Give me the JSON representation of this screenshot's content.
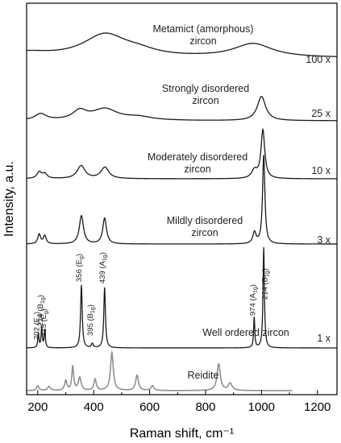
{
  "chart_data": {
    "type": "line",
    "title": "",
    "xlabel": "Raman shift, cm⁻¹",
    "ylabel": "Intensity, a.u.",
    "xlim": [
      160,
      1270
    ],
    "x_ticks": [
      200,
      400,
      600,
      800,
      1000,
      1200
    ],
    "y_ticks_shown": false,
    "grid": false,
    "legend": "none (each spectrum labeled inline)",
    "series": [
      {
        "name": "Metamict (amorphous) zircon",
        "label_lines": [
          "Metamict (amorphous)",
          "zircon"
        ],
        "scale": "100 x",
        "color": "#1a1a1a",
        "x_end": 1270,
        "peaks": [
          {
            "x": 160,
            "h": 6,
            "w": 100
          },
          {
            "x": 440,
            "h": 28,
            "w": 95
          },
          {
            "x": 560,
            "h": 6,
            "w": 80
          },
          {
            "x": 970,
            "h": 17,
            "w": 85
          }
        ]
      },
      {
        "name": "Strongly disordered zircon",
        "label_lines": [
          "Strongly disordered",
          "zircon"
        ],
        "scale": "25 x",
        "color": "#1a1a1a",
        "x_end": 1270,
        "peaks": [
          {
            "x": 210,
            "h": 8,
            "w": 25
          },
          {
            "x": 350,
            "h": 11,
            "w": 30
          },
          {
            "x": 440,
            "h": 14,
            "w": 55
          },
          {
            "x": 560,
            "h": 4,
            "w": 60
          },
          {
            "x": 1000,
            "h": 30,
            "w": 18
          }
        ]
      },
      {
        "name": "Moderately disordered zircon",
        "label_lines": [
          "Moderately disordered",
          "zircon"
        ],
        "scale": "10 x",
        "color": "#1a1a1a",
        "x_end": 1270,
        "peaks": [
          {
            "x": 205,
            "h": 8,
            "w": 10
          },
          {
            "x": 225,
            "h": 6,
            "w": 10
          },
          {
            "x": 355,
            "h": 16,
            "w": 17
          },
          {
            "x": 440,
            "h": 14,
            "w": 17
          },
          {
            "x": 975,
            "h": 10,
            "w": 12
          },
          {
            "x": 1005,
            "h": 60,
            "w": 8
          }
        ]
      },
      {
        "name": "Mildly disordered zircon",
        "label_lines": [
          "Mildly disordered",
          "zircon"
        ],
        "scale": "3 x",
        "color": "#1a1a1a",
        "x_end": 1270,
        "peaks": [
          {
            "x": 205,
            "h": 12,
            "w": 6
          },
          {
            "x": 225,
            "h": 10,
            "w": 6
          },
          {
            "x": 356,
            "h": 35,
            "w": 9
          },
          {
            "x": 439,
            "h": 32,
            "w": 8
          },
          {
            "x": 975,
            "h": 14,
            "w": 7
          },
          {
            "x": 1008,
            "h": 110,
            "w": 5
          }
        ]
      },
      {
        "name": "Well ordered zircon",
        "label_lines": [
          "Well ordered zircon"
        ],
        "scale": "1 x",
        "color": "#1a1a1a",
        "x_end": 1270,
        "peaks": [
          {
            "x": 202,
            "h": 18,
            "w": 2.5
          },
          {
            "x": 214,
            "h": 25,
            "w": 2.5
          },
          {
            "x": 225,
            "h": 22,
            "w": 2.5
          },
          {
            "x": 356,
            "h": 78,
            "w": 3.5
          },
          {
            "x": 395,
            "h": 5,
            "w": 4
          },
          {
            "x": 439,
            "h": 75,
            "w": 3.5
          },
          {
            "x": 974,
            "h": 38,
            "w": 2.5
          },
          {
            "x": 1008,
            "h": 125,
            "w": 3
          }
        ]
      },
      {
        "name": "Reidite",
        "label_lines": [
          "Reidite"
        ],
        "scale": "",
        "color": "#8f8f8f",
        "x_end": 1110,
        "peaks": [
          {
            "x": 200,
            "h": 6,
            "w": 5
          },
          {
            "x": 240,
            "h": 5,
            "w": 6
          },
          {
            "x": 300,
            "h": 12,
            "w": 5
          },
          {
            "x": 325,
            "h": 30,
            "w": 4
          },
          {
            "x": 350,
            "h": 16,
            "w": 6
          },
          {
            "x": 405,
            "h": 14,
            "w": 5
          },
          {
            "x": 465,
            "h": 47,
            "w": 6
          },
          {
            "x": 555,
            "h": 19,
            "w": 6
          },
          {
            "x": 610,
            "h": 6,
            "w": 6
          },
          {
            "x": 847,
            "h": 33,
            "w": 7
          },
          {
            "x": 888,
            "h": 9,
            "w": 8
          }
        ]
      }
    ],
    "annotations": [
      {
        "base": "202",
        "mode": "E",
        "sub": "g"
      },
      {
        "base": "214",
        "mode": "B",
        "sub": "1g"
      },
      {
        "base": "225",
        "mode": "E",
        "sub": "g"
      },
      {
        "base": "356",
        "mode": "E",
        "sub": "g"
      },
      {
        "base": "395",
        "mode": "B",
        "sub": "1g"
      },
      {
        "base": "439",
        "mode": "A",
        "sub": "1g"
      },
      {
        "base": "974",
        "mode": "A",
        "sub": "1g"
      },
      {
        "base": "214",
        "mode": "B",
        "sub": "1g"
      }
    ]
  }
}
